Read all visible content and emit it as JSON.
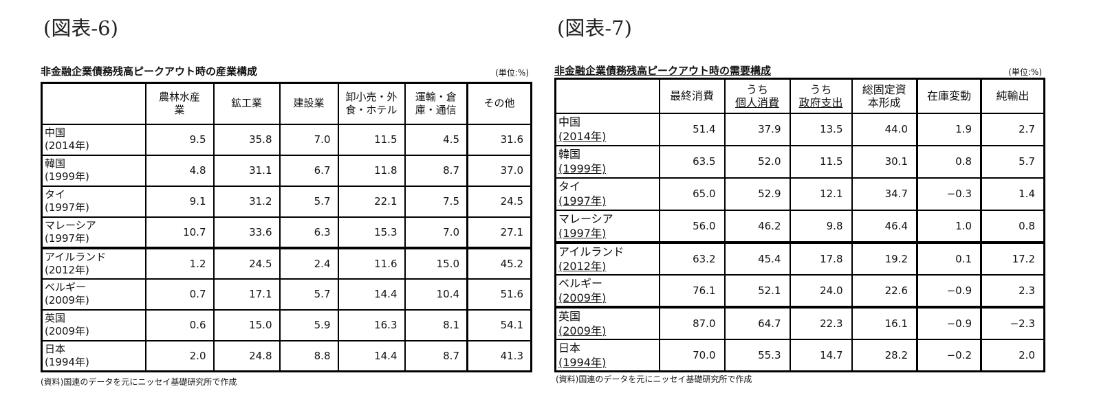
{
  "figure6": {
    "label": "(図表-6)",
    "caption": "非金融企業債務残高ピークアウト時の産業構成",
    "unit": "(単位:%)",
    "columns": [
      "",
      "農林水産\n業",
      "鉱工業",
      "建設業",
      "卸小売・外\n食・ホテル",
      "運輸・倉\n庫・通信",
      "その他"
    ],
    "column_lines": [
      [
        ""
      ],
      [
        "農林水産",
        "業"
      ],
      [
        "鉱工業"
      ],
      [
        "建設業"
      ],
      [
        "卸小売・外",
        "食・ホテル"
      ],
      [
        "運輸・倉",
        "庫・通信"
      ],
      [
        "その他"
      ]
    ],
    "rows": [
      {
        "name": "中国",
        "year": "(2014年)",
        "values": [
          "9.5",
          "35.8",
          "7.0",
          "11.5",
          "4.5",
          "31.6"
        ]
      },
      {
        "name": "韓国",
        "year": "(1999年)",
        "values": [
          "4.8",
          "31.1",
          "6.7",
          "11.8",
          "8.7",
          "37.0"
        ]
      },
      {
        "name": "タイ",
        "year": "(1997年)",
        "values": [
          "9.1",
          "31.2",
          "5.7",
          "22.1",
          "7.5",
          "24.5"
        ]
      },
      {
        "name": "マレーシア",
        "year": "(1997年)",
        "values": [
          "10.7",
          "33.6",
          "6.3",
          "15.3",
          "7.0",
          "27.1"
        ]
      },
      {
        "name": "アイルランド",
        "year": "(2012年)",
        "values": [
          "1.2",
          "24.5",
          "2.4",
          "11.6",
          "15.0",
          "45.2"
        ]
      },
      {
        "name": "ベルギー",
        "year": "(2009年)",
        "values": [
          "0.7",
          "17.1",
          "5.7",
          "14.4",
          "10.4",
          "51.6"
        ]
      },
      {
        "name": "英国",
        "year": "(2009年)",
        "values": [
          "0.6",
          "15.0",
          "5.9",
          "16.3",
          "8.1",
          "54.1"
        ]
      },
      {
        "name": "日本",
        "year": "(1994年)",
        "values": [
          "2.0",
          "24.8",
          "8.8",
          "14.4",
          "8.7",
          "41.3"
        ]
      }
    ],
    "source": "(資料)国連のデータを元にニッセイ基礎研究所で作成"
  },
  "figure7": {
    "label": "(図表-7)",
    "caption": "非金融企業債務残高ピークアウト時の需要構成",
    "unit": "(単位:%)",
    "column_lines": [
      [
        ""
      ],
      [
        "最終消費"
      ],
      [
        "うち",
        "個人消費"
      ],
      [
        "うち",
        "政府支出"
      ],
      [
        "総固定資",
        "本形成"
      ],
      [
        "在庫変動"
      ],
      [
        "純輸出"
      ]
    ],
    "rows": [
      {
        "name": "中国",
        "year": "(2014年)",
        "values": [
          "51.4",
          "37.9",
          "13.5",
          "44.0",
          "1.9",
          "2.7"
        ]
      },
      {
        "name": "韓国",
        "year": "(1999年)",
        "values": [
          "63.5",
          "52.0",
          "11.5",
          "30.1",
          "0.8",
          "5.7"
        ]
      },
      {
        "name": "タイ",
        "year": "(1997年)",
        "values": [
          "65.0",
          "52.9",
          "12.1",
          "34.7",
          "−0.3",
          "1.4"
        ]
      },
      {
        "name": "マレーシア",
        "year": "(1997年)",
        "values": [
          "56.0",
          "46.2",
          "9.8",
          "46.4",
          "1.0",
          "0.8"
        ]
      },
      {
        "name": "アイルランド",
        "year": "(2012年)",
        "values": [
          "63.2",
          "45.4",
          "17.8",
          "19.2",
          "0.1",
          "17.2"
        ]
      },
      {
        "name": "ベルギー",
        "year": "(2009年)",
        "values": [
          "76.1",
          "52.1",
          "24.0",
          "22.6",
          "−0.9",
          "2.3"
        ]
      },
      {
        "name": "英国",
        "year": "(2009年)",
        "values": [
          "87.0",
          "64.7",
          "22.3",
          "16.1",
          "−0.9",
          "−2.3"
        ]
      },
      {
        "name": "日本",
        "year": "(1994年)",
        "values": [
          "70.0",
          "55.3",
          "14.7",
          "28.2",
          "−0.2",
          "2.0"
        ]
      }
    ],
    "source": "(資料)国連のデータを元にニッセイ基礎研究所で作成"
  }
}
